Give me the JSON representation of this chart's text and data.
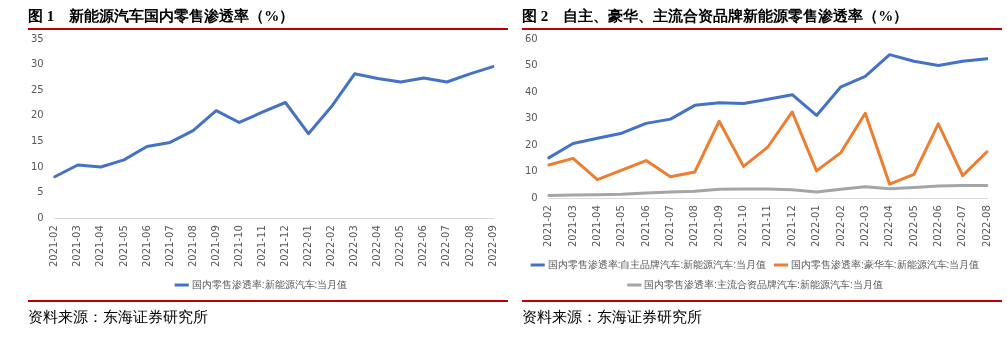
{
  "chart_data": [
    {
      "type": "line",
      "title": "图 1　新能源汽车国内零售渗透率（%）",
      "categories": [
        "2021-02",
        "2021-03",
        "2021-04",
        "2021-05",
        "2021-06",
        "2021-07",
        "2021-08",
        "2021-09",
        "2021-10",
        "2021-11",
        "2021-12",
        "2022-01",
        "2022-02",
        "2022-03",
        "2022-04",
        "2022-05",
        "2022-06",
        "2022-07",
        "2022-08",
        "2022-09"
      ],
      "series": [
        {
          "name": "国内零售渗透率:新能源汽车:当月值",
          "color": "#4472c4",
          "values": [
            8.1,
            10.4,
            10.0,
            11.4,
            14.0,
            14.8,
            17.1,
            21.0,
            18.7,
            20.7,
            22.6,
            16.5,
            21.8,
            28.2,
            27.3,
            26.6,
            27.4,
            26.6,
            28.2,
            29.6
          ]
        }
      ],
      "ylim": [
        0,
        35
      ],
      "yticks": [
        0,
        5,
        10,
        15,
        20,
        25,
        30,
        35
      ],
      "grid": false,
      "legend": "bottom",
      "marker": "none",
      "annotations": [
        "资料来源：东海证券研究所"
      ]
    },
    {
      "type": "line",
      "title": "图 2　自主、豪华、主流合资品牌新能源零售渗透率（%）",
      "categories": [
        "2021-02",
        "2021-03",
        "2021-04",
        "2021-05",
        "2021-06",
        "2021-07",
        "2021-08",
        "2021-09",
        "2021-10",
        "2021-11",
        "2021-12",
        "2022-01",
        "2022-02",
        "2022-03",
        "2022-04",
        "2022-05",
        "2022-06",
        "2022-07",
        "2022-08"
      ],
      "series": [
        {
          "name": "国内零售渗透率:自主品牌汽车:新能源汽车:当月值",
          "color": "#4472c4",
          "values": [
            15.2,
            20.6,
            22.6,
            24.5,
            28.2,
            29.8,
            35.0,
            36.0,
            35.7,
            37.3,
            39.0,
            31.2,
            42.0,
            45.9,
            54.1,
            51.6,
            50.0,
            51.6,
            52.6
          ]
        },
        {
          "name": "国内零售渗透率:豪华车:新能源汽车:当月值",
          "color": "#ed7d31",
          "values": [
            12.5,
            15.0,
            7.0,
            10.6,
            14.2,
            8.1,
            9.9,
            29.0,
            12.0,
            19.3,
            32.5,
            10.3,
            17.2,
            32.0,
            5.3,
            9.0,
            28.0,
            8.5,
            17.5
          ]
        },
        {
          "name": "国内零售渗透率:主流合资品牌汽车:新能源汽车:当月值",
          "color": "#a5a5a5",
          "values": [
            1.0,
            1.2,
            1.3,
            1.5,
            2.0,
            2.3,
            2.6,
            3.4,
            3.5,
            3.5,
            3.2,
            2.3,
            3.4,
            4.3,
            3.6,
            4.0,
            4.6,
            4.8,
            4.8
          ]
        }
      ],
      "ylim": [
        0,
        60
      ],
      "yticks": [
        0,
        10,
        20,
        30,
        40,
        50,
        60
      ],
      "grid": false,
      "legend": "bottom",
      "marker": "none",
      "annotations": [
        "资料来源：东海证券研究所"
      ]
    }
  ]
}
